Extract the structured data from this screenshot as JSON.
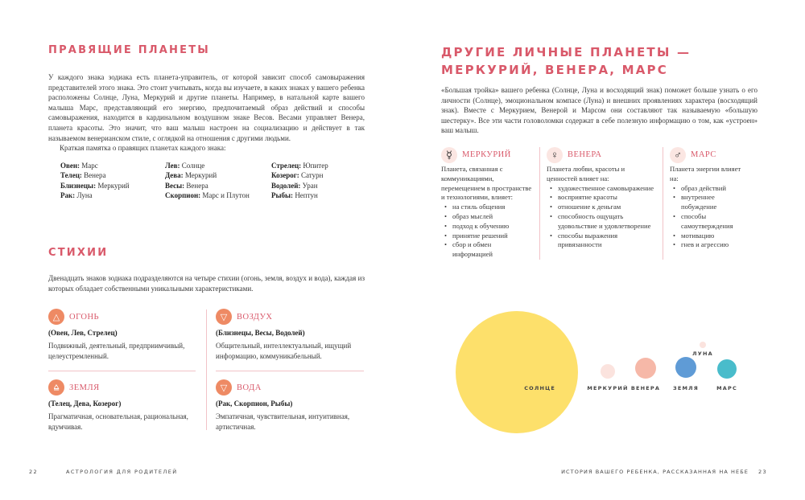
{
  "left": {
    "ruling": {
      "title": "ПРАВЯЩИЕ ПЛАНЕТЫ",
      "body": "У каждого знака зодиака есть планета-управитель, от которой зависит способ самовыражения представителей этого знака. Это стоит учитывать, когда вы изучаете, в каких знаках у вашего ребенка расположены Солнце, Луна, Меркурий и другие планеты. Например, в натальной карте вашего малыша Марс, представляющий его энергию, предпочитаемый образ действий и способы самовыражения, находится в кардинальном воздушном знаке Весов. Весами управляет Венера, планета красоты. Это значит, что ваш малыш настроен на социализацию и действует в так называемом венерианском стиле, с оглядкой на отношения с другими людьми.",
      "memo": "Краткая памятка о правящих планетах каждого знака:",
      "signs": [
        {
          "sign": "Овен:",
          "planet": "Марс"
        },
        {
          "sign": "Телец:",
          "planet": "Венера"
        },
        {
          "sign": "Близнецы:",
          "planet": "Меркурий"
        },
        {
          "sign": "Рак:",
          "planet": "Луна"
        },
        {
          "sign": "Лев:",
          "planet": "Солнце"
        },
        {
          "sign": "Дева:",
          "planet": "Меркурий"
        },
        {
          "sign": "Весы:",
          "planet": "Венера"
        },
        {
          "sign": "Скорпион:",
          "planet": "Марс и Плутон"
        },
        {
          "sign": "Стрелец:",
          "planet": "Юпитер"
        },
        {
          "sign": "Козерог:",
          "planet": "Сатурн"
        },
        {
          "sign": "Водолей:",
          "planet": "Уран"
        },
        {
          "sign": "Рыбы:",
          "planet": "Нептун"
        }
      ]
    },
    "elements": {
      "title": "СТИХИИ",
      "body": "Двенадцать знаков зодиака подразделяются на четыре стихии (огонь, земля, воздух и вода), каждая из которых обладает собственными уникальными характеристиками.",
      "items": [
        {
          "icon": "fire-triangle-icon",
          "name": "ОГОНЬ",
          "signs": "(Овен, Лев, Стрелец)",
          "desc": "Подвижный, деятельный, предприимчивый, целеустремленный."
        },
        {
          "icon": "air-triangle-icon",
          "name": "ВОЗДУХ",
          "signs": "(Близнецы, Весы, Водолей)",
          "desc": "Общительный, интеллектуальный, ищущий информацию, коммуникабельный."
        },
        {
          "icon": "earth-triangle-icon",
          "name": "ЗЕМЛЯ",
          "signs": "(Телец, Дева, Козерог)",
          "desc": "Прагматичная, основательная, рациональная, вдумчивая."
        },
        {
          "icon": "water-triangle-icon",
          "name": "ВОДА",
          "signs": "(Рак, Скорпион, Рыбы)",
          "desc": "Эмпатичная, чувствительная, интуитивная, артистичная."
        }
      ]
    },
    "footer": {
      "page": "22",
      "title": "АСТРОЛОГИЯ ДЛЯ РОДИТЕЛЕЙ"
    }
  },
  "right": {
    "title1": "ДРУГИЕ ЛИЧНЫЕ ПЛАНЕТЫ —",
    "title2": "МЕРКУРИЙ, ВЕНЕРА, МАРС",
    "body": "«Большая тройка» вашего ребенка (Солнце, Луна и восходящий знак) поможет больше узнать о его личности (Солнце), эмоциональном компасе (Луна) и внешних проявлениях характера (восходящий знак). Вместе с Меркурием, Венерой и Марсом они составляют так называемую «большую шестерку». Все эти части головоломки содержат в себе полезную информацию о том, как «устроен» ваш малыш.",
    "planets": [
      {
        "icon": "mercury-symbol-icon",
        "glyph": "☿",
        "name": "МЕРКУРИЙ",
        "intro": "Планета, связанная с коммуникациями, перемещением в пространстве и технологиями, влияет:",
        "items": [
          "на стиль общения",
          "образ мыслей",
          "подход к обучению",
          "принятие решений",
          "сбор и обмен информацией"
        ]
      },
      {
        "icon": "venus-symbol-icon",
        "glyph": "♀",
        "name": "ВЕНЕРА",
        "intro": "Планета любви, красоты и ценностей влияет на:",
        "items": [
          "художественное самовыражение",
          "восприятие красоты",
          "отношение к деньгам",
          "способность ощущать удовольствие и удовлетворение",
          "способы выражения привязанности"
        ]
      },
      {
        "icon": "mars-symbol-icon",
        "glyph": "♂",
        "name": "МАРС",
        "intro": "Планета энергии влияет на:",
        "items": [
          "образ действий",
          "внутреннее побуждение",
          "способы самоутверждения",
          "мотивацию",
          "гнев и агрессию"
        ]
      }
    ],
    "diagram": {
      "bodies": [
        {
          "name": "СОЛНЦЕ",
          "color": "#fde06b"
        },
        {
          "name": "МЕРКУРИЙ",
          "color": "#fbe3de"
        },
        {
          "name": "ВЕНЕРА",
          "color": "#f6b8a8"
        },
        {
          "name": "ЗЕМЛЯ",
          "color": "#5f9bd6"
        },
        {
          "name": "МАРС",
          "color": "#49bccb"
        },
        {
          "name": "ЛУНА",
          "color": "#fbe3de"
        }
      ]
    },
    "footer": {
      "title": "ИСТОРИЯ ВАШЕГО РЕБЕНКА, РАССКАЗАННАЯ НА НЕБЕ",
      "page": "23"
    }
  },
  "colors": {
    "accent": "#d9596a",
    "element_icon": "#ee8a64",
    "divider": "#f2c3c8"
  }
}
